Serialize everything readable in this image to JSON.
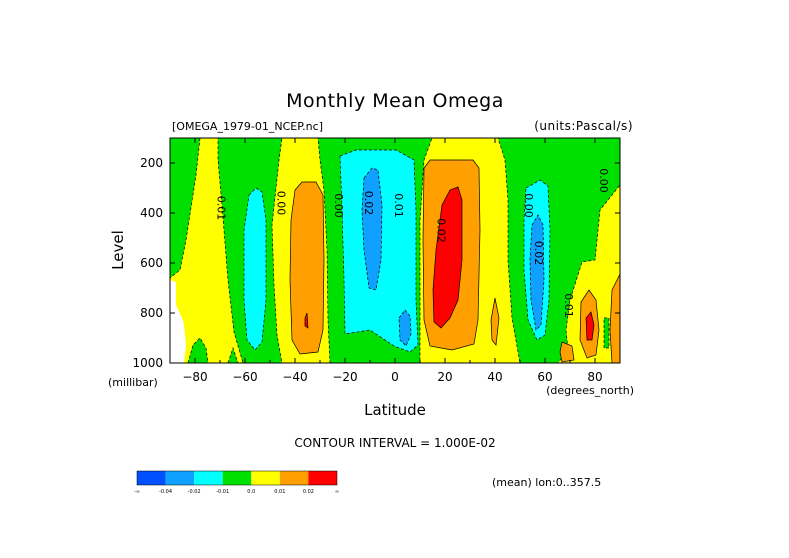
{
  "chart_data": {
    "type": "heatmap",
    "title": "Monthly Mean Omega",
    "file_label": "[OMEGA_1979-01_NCEP.nc]",
    "units_label": "(units:Pascal/s)",
    "xlabel": "Latitude",
    "x_units": "(degrees_north)",
    "ylabel": "Level",
    "y_units": "(millibar)",
    "xlim": [
      -90,
      90
    ],
    "ylim": [
      1000,
      100
    ],
    "x_ticks": [
      -80,
      -60,
      -40,
      -20,
      0,
      20,
      40,
      60,
      80
    ],
    "y_ticks": [
      200,
      400,
      600,
      800,
      1000
    ],
    "contour_interval_label": "CONTOUR INTERVAL = 1.000E-02",
    "region_label": "(mean) lon:0..357.5",
    "colorbar": {
      "labels": [
        "-∞",
        "-0.04",
        "-0.02",
        "-0.01",
        "0.0",
        "0.01",
        "0.02",
        "∞"
      ],
      "colors": [
        "#0050ff",
        "#10a0ff",
        "#00ffff",
        "#00e000",
        "#ffff00",
        "#ffa000",
        "#ff0000"
      ]
    },
    "band_colors": {
      "lt_neg_0_04": "#0050ff",
      "neg_0_02": "#10a0ff",
      "neg_0_01": "#00ffff",
      "zero_neg": "#00e000",
      "zero_pos": "#ffff00",
      "pos_0_01": "#ffa000",
      "pos_0_02": "#ff0000"
    },
    "contour_labels": [
      {
        "text": "0.01",
        "lat": -71,
        "level": 380
      },
      {
        "text": "0.00",
        "lat": -47,
        "level": 360
      },
      {
        "text": "0.00",
        "lat": -24,
        "level": 370
      },
      {
        "text": "0.02",
        "lat": -12,
        "level": 360
      },
      {
        "text": "0.01",
        "lat": 0,
        "level": 370
      },
      {
        "text": "0.02",
        "lat": 17,
        "level": 470
      },
      {
        "text": "0.00",
        "lat": 52,
        "level": 370
      },
      {
        "text": "0.02",
        "lat": 56,
        "level": 560
      },
      {
        "text": "0.01",
        "lat": 68,
        "level": 770
      },
      {
        "text": "0.00",
        "lat": 82,
        "level": 270
      }
    ]
  }
}
